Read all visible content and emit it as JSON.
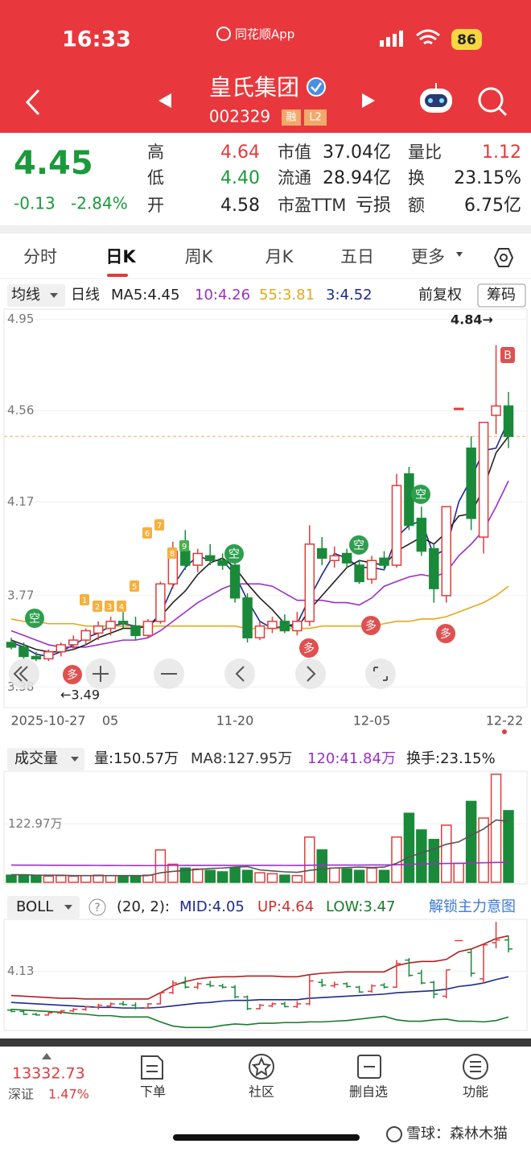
{
  "status": {
    "time": "16:33",
    "app": "同花顺App",
    "battery": "86"
  },
  "header": {
    "title": "皇氏集团",
    "code": "002329",
    "tags": [
      "融",
      "L2"
    ]
  },
  "quote": {
    "price": 4.45,
    "change": "-0.13",
    "change_pct": "-2.84%",
    "stats": [
      {
        "label": "高",
        "value": "4.64",
        "color": "#e03c3c"
      },
      {
        "label": "低",
        "value": "4.40",
        "color": "#1a9a3a"
      },
      {
        "label": "开",
        "value": "4.58",
        "color": "#222222"
      },
      {
        "label": "市值",
        "value": "37.04亿",
        "color": "#222222"
      },
      {
        "label": "流通",
        "value": "28.94亿",
        "color": "#222222"
      },
      {
        "label": "市盈TTM",
        "value": "亏损",
        "color": "#222222"
      },
      {
        "label": "量比",
        "value": "1.12",
        "color": "#e03c3c"
      },
      {
        "label": "换",
        "value": "23.15%",
        "color": "#222222"
      },
      {
        "label": "额",
        "value": "6.75亿",
        "color": "#222222"
      }
    ]
  },
  "tabs": [
    "分时",
    "日K",
    "周K",
    "月K",
    "五日",
    "更多"
  ],
  "kline": {
    "ma_menu": "均线",
    "period": "日线",
    "adjust": "前复权",
    "chips": "筹码",
    "up_color": "#e03c3c",
    "down_color": "#1a8a3a",
    "ylim": [
      3.35,
      4.98
    ],
    "yticks": [
      4.95,
      4.56,
      4.17,
      3.77,
      3.38
    ],
    "candles": [
      [
        3.57,
        3.59,
        3.54,
        3.55
      ],
      [
        3.55,
        3.57,
        3.5,
        3.51
      ],
      [
        3.51,
        3.53,
        3.49,
        3.5
      ],
      [
        3.5,
        3.54,
        3.49,
        3.53
      ],
      [
        3.53,
        3.57,
        3.51,
        3.56
      ],
      [
        3.56,
        3.6,
        3.54,
        3.58
      ],
      [
        3.58,
        3.63,
        3.56,
        3.62
      ],
      [
        3.61,
        3.66,
        3.58,
        3.64
      ],
      [
        3.63,
        3.68,
        3.6,
        3.66
      ],
      [
        3.66,
        3.7,
        3.63,
        3.65
      ],
      [
        3.64,
        3.68,
        3.58,
        3.6
      ],
      [
        3.6,
        3.67,
        3.59,
        3.66
      ],
      [
        3.66,
        3.83,
        3.65,
        3.82
      ],
      [
        3.82,
        4.0,
        3.8,
        3.96
      ],
      [
        3.96,
        4.05,
        3.88,
        3.9
      ],
      [
        3.9,
        3.97,
        3.87,
        3.95
      ],
      [
        3.94,
        3.99,
        3.9,
        3.92
      ],
      [
        3.92,
        3.95,
        3.88,
        3.9
      ],
      [
        3.9,
        3.93,
        3.74,
        3.76
      ],
      [
        3.76,
        3.78,
        3.57,
        3.59
      ],
      [
        3.59,
        3.66,
        3.58,
        3.64
      ],
      [
        3.63,
        3.68,
        3.61,
        3.66
      ],
      [
        3.66,
        3.69,
        3.61,
        3.62
      ],
      [
        3.62,
        3.7,
        3.6,
        3.66
      ],
      [
        3.66,
        4.07,
        3.64,
        3.99
      ],
      [
        3.97,
        4.02,
        3.9,
        3.93
      ],
      [
        3.92,
        3.98,
        3.89,
        3.94
      ],
      [
        3.95,
        3.97,
        3.89,
        3.91
      ],
      [
        3.9,
        3.92,
        3.82,
        3.83
      ],
      [
        3.84,
        3.94,
        3.82,
        3.92
      ],
      [
        3.93,
        3.96,
        3.88,
        3.9
      ],
      [
        3.9,
        4.29,
        3.89,
        4.24
      ],
      [
        4.29,
        4.32,
        4.05,
        4.07
      ],
      [
        4.1,
        4.15,
        3.94,
        3.96
      ],
      [
        3.97,
        3.99,
        3.74,
        3.8
      ],
      [
        3.77,
        4.15,
        3.74,
        4.15
      ],
      [
        4.57,
        4.57,
        4.57,
        4.57
      ],
      [
        4.4,
        4.45,
        4.05,
        4.1
      ],
      [
        4.02,
        4.51,
        3.95,
        4.51
      ],
      [
        4.54,
        4.84,
        4.46,
        4.58
      ],
      [
        4.58,
        4.64,
        4.4,
        4.45
      ]
    ],
    "ma": [
      {
        "label": "MA5:4.45",
        "color": "#222222",
        "values": [
          3.58,
          3.56,
          3.54,
          3.53,
          3.53,
          3.54,
          3.56,
          3.59,
          3.61,
          3.63,
          3.63,
          3.64,
          3.68,
          3.74,
          3.79,
          3.86,
          3.91,
          3.93,
          3.89,
          3.82,
          3.76,
          3.71,
          3.65,
          3.63,
          3.71,
          3.77,
          3.83,
          3.89,
          3.92,
          3.91,
          3.9,
          3.96,
          3.99,
          4.02,
          3.99,
          4.04,
          4.11,
          4.12,
          4.23,
          4.38,
          4.45
        ]
      },
      {
        "label": "10:4.26",
        "color": "#9b30c8",
        "values": [
          3.62,
          3.6,
          3.58,
          3.56,
          3.55,
          3.55,
          3.55,
          3.56,
          3.57,
          3.58,
          3.58,
          3.59,
          3.62,
          3.66,
          3.7,
          3.74,
          3.77,
          3.8,
          3.82,
          3.82,
          3.82,
          3.81,
          3.78,
          3.75,
          3.75,
          3.75,
          3.74,
          3.74,
          3.73,
          3.76,
          3.81,
          3.83,
          3.85,
          3.86,
          3.85,
          3.87,
          3.94,
          3.99,
          4.05,
          4.15,
          4.26
        ]
      },
      {
        "label": "55:3.81",
        "color": "#e6a817",
        "values": [
          3.67,
          3.66,
          3.66,
          3.65,
          3.65,
          3.65,
          3.64,
          3.64,
          3.64,
          3.64,
          3.64,
          3.64,
          3.64,
          3.64,
          3.64,
          3.64,
          3.64,
          3.64,
          3.64,
          3.63,
          3.63,
          3.63,
          3.63,
          3.63,
          3.63,
          3.64,
          3.64,
          3.64,
          3.64,
          3.64,
          3.65,
          3.66,
          3.66,
          3.67,
          3.67,
          3.68,
          3.7,
          3.72,
          3.74,
          3.77,
          3.81
        ]
      },
      {
        "label": "3:4.52",
        "color": "#1e2a8a",
        "values": [
          3.57,
          3.55,
          3.52,
          3.51,
          3.53,
          3.56,
          3.59,
          3.61,
          3.64,
          3.65,
          3.64,
          3.64,
          3.69,
          3.81,
          3.89,
          3.94,
          3.92,
          3.92,
          3.86,
          3.75,
          3.66,
          3.63,
          3.64,
          3.65,
          3.76,
          3.86,
          3.95,
          3.93,
          3.89,
          3.89,
          3.88,
          4.02,
          4.07,
          4.09,
          3.94,
          3.97,
          4.17,
          4.27,
          4.39,
          4.4,
          4.52
        ]
      }
    ],
    "dates": [
      "2025-10-27",
      "05",
      "11-20",
      "12-05",
      "12-22"
    ],
    "high_note": "4.84→",
    "low_note": "←3.49",
    "signals": [
      "空",
      "多",
      "1",
      "2",
      "3",
      "4",
      "5",
      "6",
      "7",
      "8",
      "9",
      "空",
      "多",
      "空",
      "多",
      "空",
      "多",
      "B"
    ]
  },
  "volume": {
    "menu": "成交量",
    "stats": [
      {
        "text": "量:150.57万",
        "color": "#222222"
      },
      {
        "text": "MA8:127.95万",
        "color": "#333333"
      },
      {
        "text": "120:41.84万",
        "color": "#9b30c8"
      },
      {
        "text": "换手:23.15%",
        "color": "#222222"
      }
    ],
    "ylim": [
      0,
      230
    ],
    "yticks": [
      {
        "value": 122.97,
        "label": "122.97万"
      }
    ],
    "values": [
      15,
      14,
      14,
      13,
      14,
      13,
      14,
      15,
      14,
      13,
      14,
      15,
      68,
      38,
      30,
      28,
      25,
      22,
      30,
      25,
      20,
      18,
      15,
      14,
      95,
      68,
      30,
      28,
      25,
      30,
      25,
      95,
      145,
      110,
      90,
      120,
      40,
      170,
      135,
      227,
      150.57
    ],
    "ma": [
      {
        "color": "#555555",
        "values": [
          16,
          16,
          15,
          15,
          15,
          14,
          14,
          14,
          14,
          14,
          14,
          14,
          20,
          23,
          25,
          27,
          29,
          30,
          32,
          33,
          26,
          24,
          22,
          21,
          25,
          28,
          30,
          31,
          32,
          31,
          32,
          40,
          53,
          62,
          70,
          80,
          85,
          99,
          112,
          131,
          127.95
        ]
      },
      {
        "color": "#9b30c8",
        "values": [
          36.2,
          36.1,
          36.0,
          35.9,
          35.8,
          35.7,
          35.6,
          35.5,
          35.4,
          35.3,
          35.2,
          35.1,
          35.4,
          35.5,
          35.6,
          35.6,
          35.6,
          35.6,
          35.7,
          35.7,
          35.7,
          35.6,
          35.5,
          35.4,
          35.9,
          36.2,
          36.3,
          36.3,
          36.3,
          36.4,
          36.4,
          36.9,
          37.8,
          38.5,
          39.0,
          39.7,
          39.8,
          40.5,
          41.0,
          41.8,
          41.84
        ]
      }
    ]
  },
  "boll": {
    "menu": "BOLL",
    "help": "?",
    "params": "(20, 2):",
    "stats": [
      {
        "text": "MID:4.05",
        "color": "#1e2a8a"
      },
      {
        "text": "UP:4.64",
        "color": "#d03030"
      },
      {
        "text": "LOW:3.47",
        "color": "#1a7a2a"
      }
    ],
    "unlock": "解锁主力意图",
    "ylim": [
      3.3,
      4.9
    ],
    "yticks": [
      4.13
    ],
    "bands": [
      {
        "color": "#b02020",
        "values": [
          3.78,
          3.77,
          3.76,
          3.75,
          3.74,
          3.74,
          3.73,
          3.73,
          3.73,
          3.73,
          3.73,
          3.73,
          3.82,
          3.92,
          3.98,
          4.02,
          4.04,
          4.05,
          4.05,
          4.06,
          4.06,
          4.06,
          4.05,
          4.05,
          4.08,
          4.1,
          4.11,
          4.12,
          4.12,
          4.12,
          4.12,
          4.21,
          4.25,
          4.27,
          4.27,
          4.3,
          4.41,
          4.45,
          4.52,
          4.6,
          4.64
        ]
      },
      {
        "color": "#1e2a8a",
        "values": [
          3.68,
          3.67,
          3.66,
          3.65,
          3.64,
          3.63,
          3.62,
          3.61,
          3.61,
          3.6,
          3.6,
          3.6,
          3.61,
          3.63,
          3.65,
          3.67,
          3.68,
          3.7,
          3.71,
          3.71,
          3.72,
          3.72,
          3.72,
          3.72,
          3.74,
          3.75,
          3.76,
          3.77,
          3.78,
          3.79,
          3.8,
          3.82,
          3.83,
          3.84,
          3.85,
          3.87,
          3.91,
          3.93,
          3.96,
          4.01,
          4.05
        ]
      },
      {
        "color": "#1a7a2a",
        "values": [
          3.58,
          3.57,
          3.56,
          3.55,
          3.54,
          3.52,
          3.51,
          3.49,
          3.49,
          3.47,
          3.47,
          3.47,
          3.4,
          3.34,
          3.32,
          3.32,
          3.32,
          3.35,
          3.37,
          3.36,
          3.38,
          3.38,
          3.39,
          3.39,
          3.4,
          3.4,
          3.41,
          3.42,
          3.44,
          3.46,
          3.48,
          3.43,
          3.41,
          3.41,
          3.43,
          3.44,
          3.41,
          3.41,
          3.4,
          3.42,
          3.47
        ]
      }
    ]
  },
  "bottom": {
    "index_value": "13332.73",
    "index_name": "深证",
    "index_change": "1.47%",
    "items": [
      "下单",
      "社区",
      "删自选",
      "功能"
    ]
  },
  "watermark": "雪球：森林木猫"
}
